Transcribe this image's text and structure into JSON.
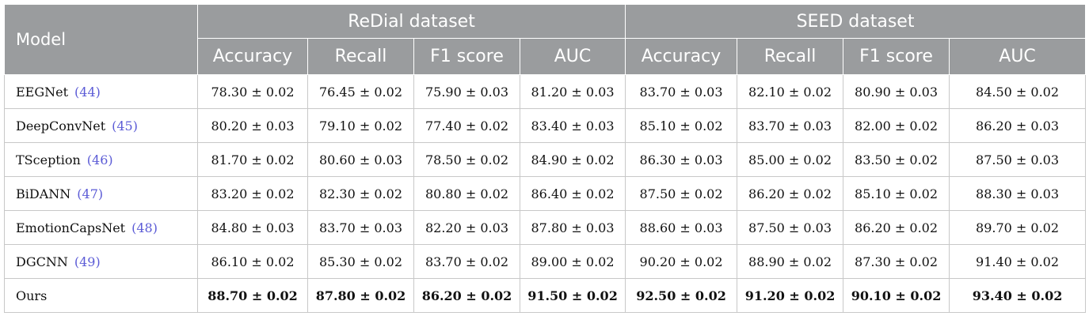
{
  "table": {
    "model_header": "Model",
    "groups": [
      "ReDial dataset",
      "SEED dataset"
    ],
    "metrics": [
      "Accuracy",
      "Recall",
      "F1 score",
      "AUC",
      "Accuracy",
      "Recall",
      "F1 score",
      "AUC"
    ],
    "rows": [
      {
        "model": "EEGNet",
        "ref": "(44)",
        "values": [
          "78.30 ± 0.02",
          "76.45 ± 0.02",
          "75.90 ± 0.03",
          "81.20 ± 0.03",
          "83.70 ± 0.03",
          "82.10 ± 0.02",
          "80.90 ± 0.03",
          "84.50 ± 0.02"
        ]
      },
      {
        "model": "DeepConvNet",
        "ref": "(45)",
        "values": [
          "80.20 ± 0.03",
          "79.10 ± 0.02",
          "77.40 ± 0.02",
          "83.40 ± 0.03",
          "85.10 ± 0.02",
          "83.70 ± 0.03",
          "82.00 ± 0.02",
          "86.20 ± 0.03"
        ]
      },
      {
        "model": "TSception",
        "ref": "(46)",
        "values": [
          "81.70 ± 0.02",
          "80.60 ± 0.03",
          "78.50 ± 0.02",
          "84.90 ± 0.02",
          "86.30 ± 0.03",
          "85.00 ± 0.02",
          "83.50 ± 0.02",
          "87.50 ± 0.03"
        ]
      },
      {
        "model": "BiDANN",
        "ref": "(47)",
        "values": [
          "83.20 ± 0.02",
          "82.30 ± 0.02",
          "80.80 ± 0.02",
          "86.40 ± 0.02",
          "87.50 ± 0.02",
          "86.20 ± 0.02",
          "85.10 ± 0.02",
          "88.30 ± 0.03"
        ]
      },
      {
        "model": "EmotionCapsNet",
        "ref": "(48)",
        "values": [
          "84.80 ± 0.03",
          "83.70 ± 0.03",
          "82.20 ± 0.03",
          "87.80 ± 0.03",
          "88.60 ± 0.03",
          "87.50 ± 0.03",
          "86.20 ± 0.02",
          "89.70 ± 0.02"
        ]
      },
      {
        "model": "DGCNN",
        "ref": "(49)",
        "values": [
          "86.10 ± 0.02",
          "85.30 ± 0.02",
          "83.70 ± 0.02",
          "89.00 ± 0.02",
          "90.20 ± 0.02",
          "88.90 ± 0.02",
          "87.30 ± 0.02",
          "91.40 ± 0.02"
        ]
      },
      {
        "model": "Ours",
        "ref": "",
        "values": [
          "88.70 ± 0.02",
          "87.80 ± 0.02",
          "86.20 ± 0.02",
          "91.50 ± 0.02",
          "92.50 ± 0.02",
          "91.20 ± 0.02",
          "90.10 ± 0.02",
          "93.40 ± 0.02"
        ]
      }
    ]
  }
}
